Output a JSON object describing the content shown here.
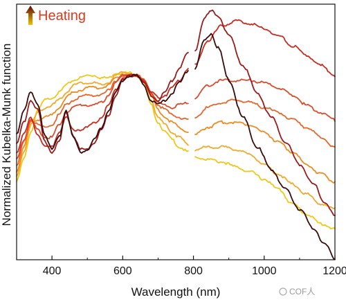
{
  "chart_data": {
    "type": "line",
    "title": "",
    "xlabel": "Wavelength (nm)",
    "ylabel": "Normalized Kubelka-Munk function",
    "xlim": [
      300,
      1200
    ],
    "ylim": [
      0,
      1
    ],
    "x_ticks": [
      400,
      600,
      800,
      1000,
      1200
    ],
    "x_tick_labels": [
      "400",
      "600",
      "800",
      "1000",
      "1200"
    ],
    "y_tick_labels_shown": false,
    "grid": false,
    "legend": {
      "text": "Heating",
      "placement": "top-left",
      "arrow": "up",
      "gradient": [
        "#f5c000",
        "#5a0a0a"
      ]
    },
    "gap_nm": [
      785,
      805
    ],
    "series": [
      {
        "color": "#f0c814",
        "segment1": [
          [
            300,
            0.31
          ],
          [
            320,
            0.4
          ],
          [
            340,
            0.51
          ],
          [
            360,
            0.6
          ],
          [
            380,
            0.64
          ],
          [
            400,
            0.65
          ],
          [
            420,
            0.67
          ],
          [
            440,
            0.7
          ],
          [
            460,
            0.72
          ],
          [
            480,
            0.73
          ],
          [
            500,
            0.74
          ],
          [
            520,
            0.74
          ],
          [
            540,
            0.73
          ],
          [
            560,
            0.73
          ],
          [
            580,
            0.75
          ],
          [
            600,
            0.75
          ],
          [
            620,
            0.75
          ],
          [
            640,
            0.74
          ],
          [
            660,
            0.71
          ],
          [
            680,
            0.62
          ],
          [
            700,
            0.55
          ],
          [
            720,
            0.51
          ],
          [
            740,
            0.48
          ],
          [
            760,
            0.45
          ],
          [
            785,
            0.43
          ]
        ],
        "segment2": [
          [
            805,
            0.41
          ],
          [
            840,
            0.4
          ],
          [
            880,
            0.39
          ],
          [
            920,
            0.37
          ],
          [
            960,
            0.35
          ],
          [
            1000,
            0.32
          ],
          [
            1040,
            0.28
          ],
          [
            1080,
            0.22
          ],
          [
            1120,
            0.18
          ],
          [
            1160,
            0.14
          ],
          [
            1200,
            0.12
          ]
        ]
      },
      {
        "color": "#f2a82a",
        "segment1": [
          [
            300,
            0.33
          ],
          [
            320,
            0.43
          ],
          [
            340,
            0.54
          ],
          [
            360,
            0.59
          ],
          [
            380,
            0.61
          ],
          [
            400,
            0.62
          ],
          [
            420,
            0.64
          ],
          [
            440,
            0.67
          ],
          [
            460,
            0.7
          ],
          [
            480,
            0.71
          ],
          [
            500,
            0.71
          ],
          [
            520,
            0.71
          ],
          [
            540,
            0.7
          ],
          [
            560,
            0.71
          ],
          [
            580,
            0.74
          ],
          [
            600,
            0.75
          ],
          [
            620,
            0.75
          ],
          [
            640,
            0.74
          ],
          [
            660,
            0.72
          ],
          [
            680,
            0.64
          ],
          [
            700,
            0.57
          ],
          [
            720,
            0.54
          ],
          [
            740,
            0.51
          ],
          [
            760,
            0.49
          ],
          [
            785,
            0.46
          ]
        ],
        "segment2": [
          [
            805,
            0.44
          ],
          [
            840,
            0.45
          ],
          [
            880,
            0.45
          ],
          [
            920,
            0.44
          ],
          [
            960,
            0.42
          ],
          [
            1000,
            0.38
          ],
          [
            1040,
            0.34
          ],
          [
            1080,
            0.3
          ],
          [
            1120,
            0.26
          ],
          [
            1160,
            0.22
          ],
          [
            1200,
            0.2
          ]
        ]
      },
      {
        "color": "#ef8a1e",
        "segment1": [
          [
            300,
            0.35
          ],
          [
            320,
            0.45
          ],
          [
            340,
            0.55
          ],
          [
            360,
            0.56
          ],
          [
            380,
            0.57
          ],
          [
            400,
            0.58
          ],
          [
            420,
            0.61
          ],
          [
            440,
            0.65
          ],
          [
            460,
            0.67
          ],
          [
            480,
            0.68
          ],
          [
            500,
            0.69
          ],
          [
            520,
            0.69
          ],
          [
            540,
            0.69
          ],
          [
            560,
            0.7
          ],
          [
            580,
            0.73
          ],
          [
            600,
            0.74
          ],
          [
            620,
            0.74
          ],
          [
            640,
            0.74
          ],
          [
            660,
            0.72
          ],
          [
            680,
            0.66
          ],
          [
            700,
            0.6
          ],
          [
            720,
            0.57
          ],
          [
            740,
            0.55
          ],
          [
            760,
            0.53
          ],
          [
            785,
            0.51
          ]
        ],
        "segment2": [
          [
            805,
            0.5
          ],
          [
            840,
            0.53
          ],
          [
            880,
            0.55
          ],
          [
            920,
            0.55
          ],
          [
            960,
            0.54
          ],
          [
            1000,
            0.51
          ],
          [
            1040,
            0.47
          ],
          [
            1080,
            0.43
          ],
          [
            1120,
            0.38
          ],
          [
            1160,
            0.34
          ],
          [
            1200,
            0.31
          ]
        ]
      },
      {
        "color": "#e8652a",
        "segment1": [
          [
            300,
            0.37
          ],
          [
            320,
            0.47
          ],
          [
            340,
            0.56
          ],
          [
            360,
            0.54
          ],
          [
            380,
            0.53
          ],
          [
            400,
            0.54
          ],
          [
            420,
            0.58
          ],
          [
            440,
            0.62
          ],
          [
            460,
            0.64
          ],
          [
            480,
            0.65
          ],
          [
            500,
            0.66
          ],
          [
            520,
            0.66
          ],
          [
            540,
            0.66
          ],
          [
            560,
            0.68
          ],
          [
            580,
            0.72
          ],
          [
            600,
            0.74
          ],
          [
            620,
            0.74
          ],
          [
            640,
            0.74
          ],
          [
            660,
            0.72
          ],
          [
            680,
            0.67
          ],
          [
            700,
            0.62
          ],
          [
            720,
            0.6
          ],
          [
            740,
            0.58
          ],
          [
            760,
            0.57
          ],
          [
            785,
            0.56
          ]
        ],
        "segment2": [
          [
            805,
            0.57
          ],
          [
            840,
            0.61
          ],
          [
            880,
            0.63
          ],
          [
            920,
            0.64
          ],
          [
            960,
            0.63
          ],
          [
            1000,
            0.61
          ],
          [
            1040,
            0.59
          ],
          [
            1080,
            0.56
          ],
          [
            1120,
            0.53
          ],
          [
            1160,
            0.49
          ],
          [
            1200,
            0.45
          ]
        ]
      },
      {
        "color": "#dd4a2a",
        "segment1": [
          [
            300,
            0.4
          ],
          [
            320,
            0.48
          ],
          [
            340,
            0.56
          ],
          [
            360,
            0.52
          ],
          [
            380,
            0.49
          ],
          [
            400,
            0.49
          ],
          [
            420,
            0.54
          ],
          [
            440,
            0.59
          ],
          [
            460,
            0.61
          ],
          [
            480,
            0.62
          ],
          [
            500,
            0.62
          ],
          [
            520,
            0.62
          ],
          [
            540,
            0.63
          ],
          [
            560,
            0.66
          ],
          [
            580,
            0.71
          ],
          [
            600,
            0.74
          ],
          [
            620,
            0.74
          ],
          [
            640,
            0.74
          ],
          [
            660,
            0.72
          ],
          [
            680,
            0.67
          ],
          [
            700,
            0.63
          ],
          [
            720,
            0.62
          ],
          [
            740,
            0.61
          ],
          [
            760,
            0.62
          ],
          [
            785,
            0.63
          ]
        ],
        "segment2": [
          [
            805,
            0.65
          ],
          [
            840,
            0.7
          ],
          [
            880,
            0.72
          ],
          [
            920,
            0.72
          ],
          [
            960,
            0.72
          ],
          [
            1000,
            0.71
          ],
          [
            1040,
            0.69
          ],
          [
            1080,
            0.66
          ],
          [
            1120,
            0.62
          ],
          [
            1160,
            0.59
          ],
          [
            1200,
            0.56
          ]
        ]
      },
      {
        "color": "#c82a1e",
        "segment1": [
          [
            300,
            0.43
          ],
          [
            320,
            0.5
          ],
          [
            340,
            0.57
          ],
          [
            360,
            0.5
          ],
          [
            380,
            0.45
          ],
          [
            400,
            0.45
          ],
          [
            420,
            0.51
          ],
          [
            440,
            0.57
          ],
          [
            460,
            0.52
          ],
          [
            480,
            0.52
          ],
          [
            500,
            0.53
          ],
          [
            520,
            0.55
          ],
          [
            540,
            0.57
          ],
          [
            560,
            0.62
          ],
          [
            580,
            0.68
          ],
          [
            600,
            0.73
          ],
          [
            620,
            0.74
          ],
          [
            640,
            0.74
          ],
          [
            660,
            0.72
          ],
          [
            680,
            0.67
          ],
          [
            700,
            0.65
          ],
          [
            720,
            0.66
          ],
          [
            740,
            0.69
          ],
          [
            760,
            0.72
          ],
          [
            785,
            0.77
          ]
        ],
        "segment2": [
          [
            805,
            0.78
          ],
          [
            840,
            0.88
          ],
          [
            880,
            0.94
          ],
          [
            920,
            0.96
          ],
          [
            960,
            0.95
          ],
          [
            1000,
            0.93
          ],
          [
            1040,
            0.9
          ],
          [
            1080,
            0.86
          ],
          [
            1120,
            0.82
          ],
          [
            1160,
            0.78
          ],
          [
            1200,
            0.74
          ]
        ]
      },
      {
        "color": "#9a1a1a",
        "segment1": [
          [
            300,
            0.46
          ],
          [
            320,
            0.55
          ],
          [
            340,
            0.64
          ],
          [
            360,
            0.6
          ],
          [
            380,
            0.47
          ],
          [
            400,
            0.43
          ],
          [
            420,
            0.47
          ],
          [
            440,
            0.59
          ],
          [
            460,
            0.5
          ],
          [
            480,
            0.44
          ],
          [
            500,
            0.44
          ],
          [
            520,
            0.47
          ],
          [
            540,
            0.52
          ],
          [
            560,
            0.58
          ],
          [
            580,
            0.66
          ],
          [
            600,
            0.72
          ],
          [
            620,
            0.74
          ],
          [
            640,
            0.74
          ],
          [
            660,
            0.71
          ],
          [
            680,
            0.66
          ],
          [
            700,
            0.64
          ],
          [
            720,
            0.67
          ],
          [
            740,
            0.72
          ],
          [
            760,
            0.77
          ],
          [
            785,
            0.83
          ]
        ],
        "segment2": [
          [
            805,
            0.84
          ],
          [
            830,
            0.97
          ],
          [
            850,
            1.0
          ],
          [
            870,
            0.98
          ],
          [
            900,
            0.9
          ],
          [
            940,
            0.78
          ],
          [
            980,
            0.67
          ],
          [
            1020,
            0.57
          ],
          [
            1060,
            0.47
          ],
          [
            1100,
            0.38
          ],
          [
            1140,
            0.3
          ],
          [
            1170,
            0.23
          ],
          [
            1200,
            0.17
          ]
        ]
      },
      {
        "color": "#3a0a0a",
        "segment1": [
          [
            300,
            0.5
          ],
          [
            320,
            0.6
          ],
          [
            340,
            0.67
          ],
          [
            360,
            0.62
          ],
          [
            380,
            0.5
          ],
          [
            400,
            0.44
          ],
          [
            420,
            0.49
          ],
          [
            440,
            0.6
          ],
          [
            460,
            0.49
          ],
          [
            480,
            0.43
          ],
          [
            500,
            0.44
          ],
          [
            520,
            0.48
          ],
          [
            540,
            0.53
          ],
          [
            560,
            0.6
          ],
          [
            580,
            0.67
          ],
          [
            600,
            0.72
          ],
          [
            620,
            0.74
          ],
          [
            640,
            0.74
          ],
          [
            660,
            0.7
          ],
          [
            680,
            0.64
          ],
          [
            700,
            0.62
          ],
          [
            720,
            0.64
          ],
          [
            740,
            0.67
          ],
          [
            760,
            0.71
          ],
          [
            785,
            0.76
          ]
        ],
        "segment2": [
          [
            805,
            0.77
          ],
          [
            830,
            0.88
          ],
          [
            850,
            0.91
          ],
          [
            870,
            0.85
          ],
          [
            900,
            0.72
          ],
          [
            940,
            0.57
          ],
          [
            980,
            0.45
          ],
          [
            1020,
            0.36
          ],
          [
            1060,
            0.28
          ],
          [
            1100,
            0.2
          ],
          [
            1140,
            0.12
          ],
          [
            1170,
            0.06
          ],
          [
            1200,
            0.0
          ]
        ]
      }
    ]
  },
  "watermark": {
    "text": "COF人"
  }
}
